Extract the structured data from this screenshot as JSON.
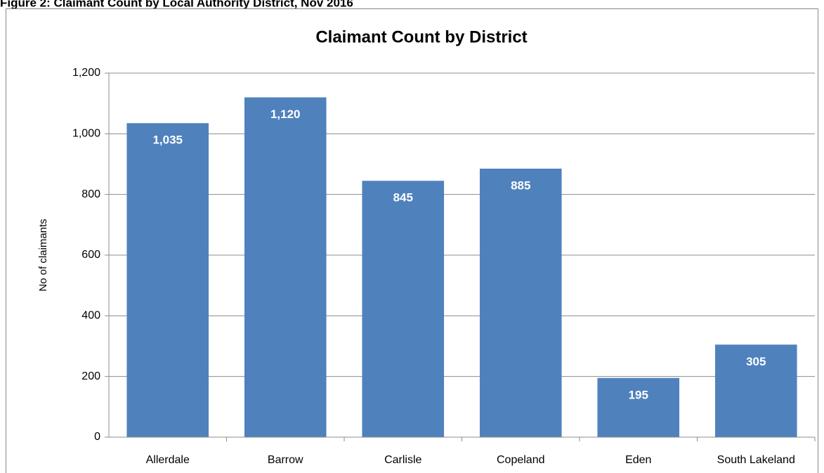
{
  "chart_data": {
    "type": "bar",
    "figure_title": "Figure 2: Claimant Count by Local Authority District, Nov 2016",
    "title": "Claimant Count by District",
    "y_label": "No of claimants",
    "categories": [
      "Allerdale",
      "Barrow",
      "Carlisle",
      "Copeland",
      "Eden",
      "South Lakeland"
    ],
    "values": [
      1035,
      1120,
      845,
      885,
      195,
      305
    ],
    "value_labels": [
      "1,035",
      "1,120",
      "845",
      "885",
      "195",
      "305"
    ],
    "color": "#4f81bd",
    "ylim": [
      0,
      1200
    ],
    "yticks": [
      0,
      200,
      400,
      600,
      800,
      {
        "value": 1000,
        "label": "1,000"
      },
      {
        "value": 1200,
        "label": "1,200"
      }
    ],
    "grid": true
  }
}
